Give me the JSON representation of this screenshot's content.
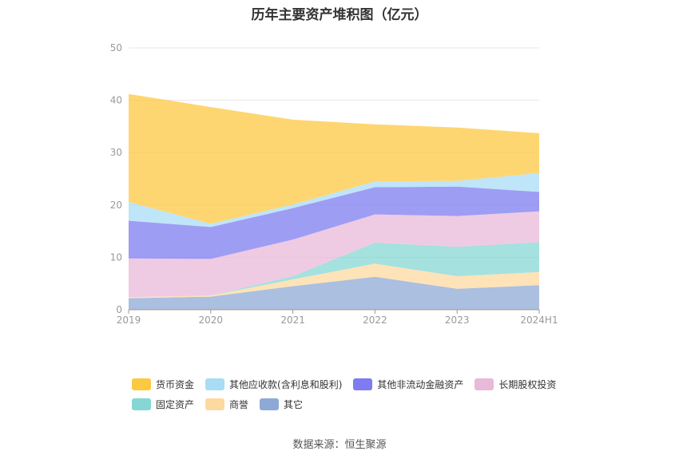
{
  "chart_data": {
    "type": "area",
    "stacked": true,
    "title": "历年主要资产堆积图（亿元）",
    "categories": [
      "2019",
      "2020",
      "2021",
      "2022",
      "2023",
      "2024H1"
    ],
    "ylim": [
      0,
      50
    ],
    "yticks": [
      0,
      10,
      20,
      30,
      40,
      50
    ],
    "grid": true,
    "legend_position": "bottom",
    "series": [
      {
        "name": "其它",
        "color": "#8fa9d6",
        "values": [
          2.2,
          2.5,
          4.5,
          6.3,
          4.0,
          4.7
        ]
      },
      {
        "name": "商誉",
        "color": "#fdd9a0",
        "values": [
          0.2,
          0.2,
          1.3,
          2.5,
          2.4,
          2.5
        ]
      },
      {
        "name": "固定资产",
        "color": "#85d7d4",
        "values": [
          0.0,
          0.0,
          0.6,
          4.0,
          5.6,
          5.7
        ]
      },
      {
        "name": "长期股权投资",
        "color": "#e8b9d9",
        "values": [
          7.4,
          7.0,
          7.0,
          5.4,
          5.9,
          5.9
        ]
      },
      {
        "name": "其他非流动金融资产",
        "color": "#7e7cf0",
        "values": [
          7.2,
          6.1,
          6.0,
          5.2,
          5.6,
          3.7
        ]
      },
      {
        "name": "其他应收款(含利息和股利)",
        "color": "#a9dcf5",
        "values": [
          3.6,
          0.6,
          0.7,
          1.1,
          1.1,
          3.6
        ]
      },
      {
        "name": "货币资金",
        "color": "#fdc842",
        "values": [
          20.6,
          22.3,
          16.2,
          10.9,
          10.2,
          7.6
        ]
      }
    ]
  },
  "legend": {
    "order": [
      {
        "name": "货币资金",
        "color": "#fdc842"
      },
      {
        "name": "其他应收款(含利息和股利)",
        "color": "#a9dcf5"
      },
      {
        "name": "其他非流动金融资产",
        "color": "#7e7cf0"
      },
      {
        "name": "长期股权投资",
        "color": "#e8b9d9"
      },
      {
        "name": "固定资产",
        "color": "#85d7d4"
      },
      {
        "name": "商誉",
        "color": "#fdd9a0"
      },
      {
        "name": "其它",
        "color": "#8fa9d6"
      }
    ]
  },
  "source": "数据来源：恒生聚源"
}
